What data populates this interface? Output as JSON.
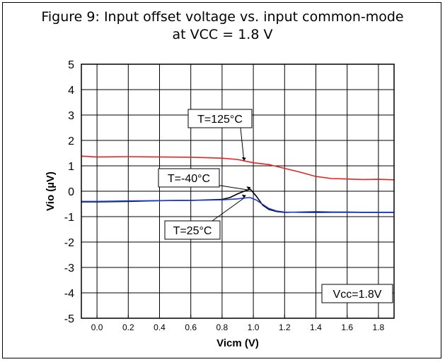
{
  "figure": {
    "title_line1": "Figure 9: Input offset voltage vs. input common-mode",
    "title_line2": "at VCC = 1.8 V"
  },
  "chart_data": {
    "type": "line",
    "xlabel": "Vicm (V)",
    "ylabel": "Vio (µV)",
    "xlim": [
      -0.1,
      1.9
    ],
    "ylim": [
      -5,
      5
    ],
    "x_ticks": [
      0.0,
      0.2,
      0.4,
      0.6,
      0.8,
      1.0,
      1.2,
      1.4,
      1.6,
      1.8
    ],
    "x_tick_labels": [
      "0.0",
      "0.2",
      "0.4",
      "0.6",
      "0.8",
      "1.0",
      "1.2",
      "1.4",
      "1.6",
      "1.8"
    ],
    "y_ticks": [
      5,
      4,
      3,
      2,
      1,
      0,
      -1,
      -2,
      -3,
      -4,
      -5
    ],
    "y_tick_labels": [
      "5",
      "4",
      "3",
      "2",
      "1",
      "0",
      "-1",
      "-2",
      "-3",
      "-4",
      "-5"
    ],
    "grid": true,
    "series": [
      {
        "name": "T=125°C",
        "color": "#e8231f",
        "x": [
          -0.1,
          0.0,
          0.2,
          0.4,
          0.6,
          0.8,
          0.9,
          1.0,
          1.1,
          1.2,
          1.3,
          1.4,
          1.5,
          1.6,
          1.7,
          1.8,
          1.9
        ],
        "y": [
          1.38,
          1.35,
          1.36,
          1.35,
          1.34,
          1.3,
          1.25,
          1.12,
          1.05,
          0.9,
          0.75,
          0.58,
          0.5,
          0.48,
          0.46,
          0.47,
          0.45
        ]
      },
      {
        "name": "T=-40°C",
        "color": "#000000",
        "x": [
          -0.1,
          0.0,
          0.2,
          0.4,
          0.6,
          0.8,
          0.85,
          0.9,
          0.95,
          0.98,
          1.02,
          1.06,
          1.1,
          1.15,
          1.2,
          1.3,
          1.4,
          1.5,
          1.6,
          1.7,
          1.8,
          1.9
        ],
        "y": [
          -0.42,
          -0.42,
          -0.4,
          -0.37,
          -0.36,
          -0.32,
          -0.25,
          -0.1,
          0.02,
          0.08,
          -0.2,
          -0.55,
          -0.72,
          -0.8,
          -0.83,
          -0.82,
          -0.81,
          -0.82,
          -0.82,
          -0.83,
          -0.83,
          -0.83
        ]
      },
      {
        "name": "T=25°C",
        "color": "#1f3ad6",
        "x": [
          -0.1,
          0.0,
          0.2,
          0.4,
          0.6,
          0.8,
          0.9,
          0.95,
          0.98,
          1.02,
          1.06,
          1.1,
          1.15,
          1.2,
          1.3,
          1.4,
          1.5,
          1.6,
          1.7,
          1.8,
          1.9
        ],
        "y": [
          -0.4,
          -0.4,
          -0.38,
          -0.37,
          -0.36,
          -0.34,
          -0.3,
          -0.26,
          -0.25,
          -0.35,
          -0.52,
          -0.68,
          -0.78,
          -0.82,
          -0.83,
          -0.84,
          -0.83,
          -0.83,
          -0.83,
          -0.83,
          -0.83
        ]
      }
    ],
    "annotations": [
      {
        "text": "T=125°C",
        "point": [
          0.94,
          1.2
        ]
      },
      {
        "text": "T=-40°C",
        "point": [
          0.97,
          0.05
        ]
      },
      {
        "text": "T=25°C",
        "point": [
          0.94,
          -0.27
        ]
      },
      {
        "text": "Vcc=1.8V",
        "point": null
      }
    ]
  }
}
